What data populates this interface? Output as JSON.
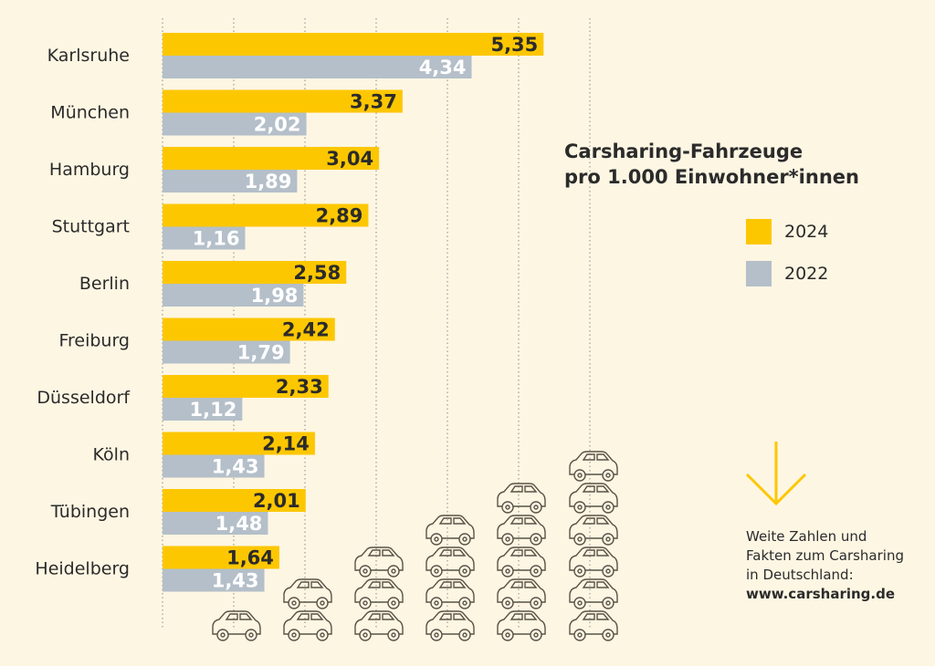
{
  "chart_data": {
    "type": "bar",
    "orientation": "horizontal",
    "title": "Carsharing-Fahrzeuge pro 1.000 Einwohner*innen",
    "title_lines": [
      "Carsharing-Fahrzeuge",
      "pro 1.000 Einwohner*innen"
    ],
    "categories": [
      "Karlsruhe",
      "München",
      "Hamburg",
      "Stuttgart",
      "Berlin",
      "Freiburg",
      "Düsseldorf",
      "Köln",
      "Tübingen",
      "Heidelberg"
    ],
    "series": [
      {
        "name": "2024",
        "color": "#fdc700",
        "values": [
          5.35,
          3.37,
          3.04,
          2.89,
          2.58,
          2.42,
          2.33,
          2.14,
          2.01,
          1.64
        ],
        "labels": [
          "5,35",
          "3,37",
          "3,04",
          "2,89",
          "2,58",
          "2,42",
          "2,33",
          "2,14",
          "2,01",
          "1,64"
        ]
      },
      {
        "name": "2022",
        "color": "#b4bfc9",
        "values": [
          4.34,
          2.02,
          1.89,
          1.16,
          1.98,
          1.79,
          1.12,
          1.43,
          1.48,
          1.43
        ],
        "labels": [
          "4,34",
          "2,02",
          "1,89",
          "1,16",
          "1,98",
          "1,79",
          "1,12",
          "1,43",
          "1,48",
          "1,43"
        ]
      }
    ],
    "xlim": [
      0,
      6
    ],
    "grid": true,
    "legend_position": "right"
  },
  "legend": [
    {
      "label": "2024",
      "color": "#fdc700"
    },
    {
      "label": "2022",
      "color": "#b4bfc9"
    }
  ],
  "footer_note": {
    "lines": [
      "Weite Zahlen und",
      "Fakten zum Carsharing",
      "in Deutschland:"
    ],
    "url": "www.carsharing.de"
  },
  "decoration": {
    "car_icon": "car-outline-icon",
    "arrow_icon": "arrow-down-icon",
    "car_stack_counts": [
      1,
      2,
      3,
      4,
      5,
      6
    ]
  }
}
